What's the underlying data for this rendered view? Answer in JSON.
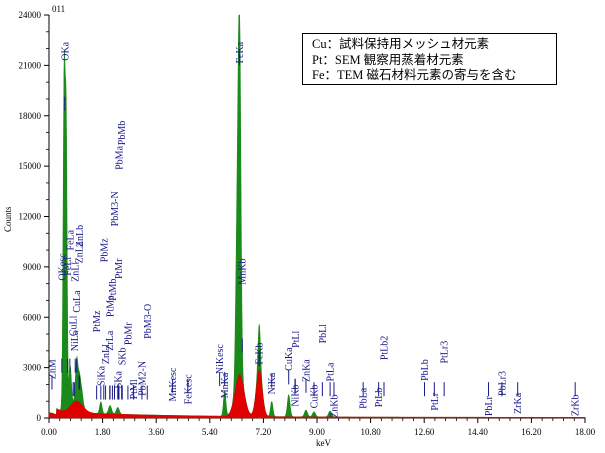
{
  "chart_data": {
    "type": "area",
    "xlabel": "keV",
    "ylabel": "Counts",
    "xlim": [
      0,
      18
    ],
    "ylim": [
      0,
      24000
    ],
    "x_ticks": [
      "0.00",
      "1.80",
      "3.60",
      "5.40",
      "7.20",
      "9.00",
      "10.80",
      "12.60",
      "14.40",
      "16.20",
      "18.00"
    ],
    "y_ticks": [
      "0",
      "3000",
      "6000",
      "9000",
      "12000",
      "15000",
      "18000",
      "21000",
      "24000"
    ],
    "corner_label": "011",
    "series_colors": {
      "peak_fill": "#1a8a1a",
      "background_fill": "#e00000",
      "label_color": "#1a1a8a"
    },
    "green_peaks": [
      {
        "x": 0.51,
        "y": 20200,
        "w": 0.035
      },
      {
        "x": 0.58,
        "y": 15500,
        "w": 0.03
      },
      {
        "x": 0.71,
        "y": 2400,
        "w": 0.04
      },
      {
        "x": 0.93,
        "y": 2500,
        "w": 0.04
      },
      {
        "x": 1.02,
        "y": 1500,
        "w": 0.04
      },
      {
        "x": 1.1,
        "y": 800,
        "w": 0.04
      },
      {
        "x": 1.74,
        "y": 700,
        "w": 0.04
      },
      {
        "x": 2.05,
        "y": 500,
        "w": 0.05
      },
      {
        "x": 2.31,
        "y": 400,
        "w": 0.05
      },
      {
        "x": 5.9,
        "y": 1500,
        "w": 0.04
      },
      {
        "x": 6.4,
        "y": 19800,
        "w": 0.045
      },
      {
        "x": 6.32,
        "y": 9000,
        "w": 0.05
      },
      {
        "x": 7.06,
        "y": 2700,
        "w": 0.04
      },
      {
        "x": 7.48,
        "y": 900,
        "w": 0.04
      },
      {
        "x": 8.05,
        "y": 1300,
        "w": 0.045
      },
      {
        "x": 8.63,
        "y": 400,
        "w": 0.05
      },
      {
        "x": 8.9,
        "y": 300,
        "w": 0.05
      },
      {
        "x": 9.44,
        "y": 350,
        "w": 0.05
      }
    ],
    "red_peaks": [
      {
        "x": 0.05,
        "y": 300,
        "w": 0.2
      },
      {
        "x": 0.93,
        "y": 700,
        "w": 0.2
      },
      {
        "x": 6.4,
        "y": 2500,
        "w": 0.15
      },
      {
        "x": 7.06,
        "y": 2800,
        "w": 0.1
      }
    ],
    "peak_labels": [
      {
        "text": "OKa",
        "x": 0.53,
        "bar_y": 18300,
        "label_y": 22400
      },
      {
        "text": "FeKa",
        "x": 6.4,
        "bar_y": 21000,
        "label_y": 22400
      },
      {
        "text": "ZnM",
        "x": 0.1,
        "bar_y": 1700,
        "label_y": 3500
      },
      {
        "text": "NiLa",
        "x": 0.85,
        "bar_y": 1300,
        "label_y": 5200
      },
      {
        "text": "CuLl",
        "x": 0.81,
        "bar_y": 1300,
        "label_y": 6100
      },
      {
        "text": "CuLa",
        "x": 0.93,
        "bar_y": 2700,
        "label_y": 7600
      },
      {
        "text": "ZnLl",
        "x": 0.88,
        "bar_y": 2700,
        "label_y": 9300
      },
      {
        "text": "ZnLa",
        "x": 1.01,
        "bar_y": 1700,
        "label_y": 10500
      },
      {
        "text": "ZnLb",
        "x": 1.03,
        "bar_y": 1700,
        "label_y": 11500
      },
      {
        "text": "FeLa",
        "x": 0.7,
        "bar_y": 2700,
        "label_y": 11200
      },
      {
        "text": "FeLl",
        "x": 0.62,
        "bar_y": 2700,
        "label_y": 9600
      },
      {
        "text": "OKesc",
        "x": 0.43,
        "bar_y": 2700,
        "label_y": 9800
      },
      {
        "text": "SiKa",
        "x": 1.74,
        "bar_y": 1100,
        "label_y": 3100
      },
      {
        "text": "ZnLl",
        "x": 1.9,
        "bar_y": 1100,
        "label_y": 4400
      },
      {
        "text": "PtMz",
        "x": 1.6,
        "bar_y": 1100,
        "label_y": 6400
      },
      {
        "text": "ZrLa",
        "x": 2.04,
        "bar_y": 1100,
        "label_y": 5200
      },
      {
        "text": "PtMa",
        "x": 2.05,
        "bar_y": 1100,
        "label_y": 7300
      },
      {
        "text": "PtMb",
        "x": 2.13,
        "bar_y": 1100,
        "label_y": 8300
      },
      {
        "text": "PbMz",
        "x": 1.84,
        "bar_y": 1100,
        "label_y": 10700
      },
      {
        "text": "PtMr",
        "x": 2.33,
        "bar_y": 1100,
        "label_y": 9500
      },
      {
        "text": "PbM3-N",
        "x": 2.2,
        "bar_y": 1100,
        "label_y": 13500
      },
      {
        "text": "PbMa",
        "x": 2.35,
        "bar_y": 1100,
        "label_y": 16200
      },
      {
        "text": "PbMb",
        "x": 2.44,
        "bar_y": 1100,
        "label_y": 17700
      },
      {
        "text": "SKa",
        "x": 2.31,
        "bar_y": 1100,
        "label_y": 2800
      },
      {
        "text": "SKb",
        "x": 2.46,
        "bar_y": 1100,
        "label_y": 4200
      },
      {
        "text": "PbMr",
        "x": 2.65,
        "bar_y": 1100,
        "label_y": 5700
      },
      {
        "text": "PtMl",
        "x": 2.84,
        "bar_y": 1100,
        "label_y": 2300
      },
      {
        "text": "PbM2-N",
        "x": 3.12,
        "bar_y": 1100,
        "label_y": 3400
      },
      {
        "text": "PbM3-O",
        "x": 3.3,
        "bar_y": 1100,
        "label_y": 6800
      },
      {
        "text": "MnKesc",
        "x": 4.15,
        "bar_y": 1500,
        "label_y": 3000
      },
      {
        "text": "FeKesc",
        "x": 4.66,
        "bar_y": 1500,
        "label_y": 2600
      },
      {
        "text": "MnKa",
        "x": 5.9,
        "bar_y": 1900,
        "label_y": 2700
      },
      {
        "text": "NiKesc",
        "x": 5.73,
        "bar_y": 1900,
        "label_y": 4400
      },
      {
        "text": "MnKb",
        "x": 6.49,
        "bar_y": 3900,
        "label_y": 9500
      },
      {
        "text": "FeKb",
        "x": 7.06,
        "bar_y": 3100,
        "label_y": 4500
      },
      {
        "text": "NiKa",
        "x": 7.48,
        "bar_y": 1800,
        "label_y": 2700
      },
      {
        "text": "CuKa",
        "x": 8.05,
        "bar_y": 2000,
        "label_y": 4200
      },
      {
        "text": "NiKb",
        "x": 8.26,
        "bar_y": 1500,
        "label_y": 2000
      },
      {
        "text": "PtLl",
        "x": 8.27,
        "bar_y": 1500,
        "label_y": 5200
      },
      {
        "text": "ZnKa",
        "x": 8.63,
        "bar_y": 1500,
        "label_y": 3500
      },
      {
        "text": "CuKb",
        "x": 8.9,
        "bar_y": 1300,
        "label_y": 2000
      },
      {
        "text": "PbLl",
        "x": 9.18,
        "bar_y": 1300,
        "label_y": 5600
      },
      {
        "text": "ZnKb",
        "x": 9.57,
        "bar_y": 1300,
        "label_y": 1400
      },
      {
        "text": "PtLa",
        "x": 9.44,
        "bar_y": 1300,
        "label_y": 3300
      },
      {
        "text": "PbLa",
        "x": 10.55,
        "bar_y": 1300,
        "label_y": 1800
      },
      {
        "text": "PtLb",
        "x": 11.07,
        "bar_y": 1300,
        "label_y": 1800
      },
      {
        "text": "PtLb2",
        "x": 11.25,
        "bar_y": 1300,
        "label_y": 4900
      },
      {
        "text": "PbLb",
        "x": 12.61,
        "bar_y": 1300,
        "label_y": 3500
      },
      {
        "text": "PtLr",
        "x": 12.94,
        "bar_y": 1300,
        "label_y": 1500
      },
      {
        "text": "PtLr3",
        "x": 13.27,
        "bar_y": 1300,
        "label_y": 4600
      },
      {
        "text": "PbLr",
        "x": 14.76,
        "bar_y": 1300,
        "label_y": 1300
      },
      {
        "text": "PbLr3",
        "x": 15.21,
        "bar_y": 1300,
        "label_y": 2800
      },
      {
        "text": "ZrKa",
        "x": 15.74,
        "bar_y": 1300,
        "label_y": 1500
      },
      {
        "text": "ZrKb",
        "x": 17.67,
        "bar_y": 1300,
        "label_y": 1400
      }
    ]
  },
  "legend": {
    "lines": [
      "Cu：試料保持用メッシュ材元素",
      "Pt：SEM 観察用蒸着材元素",
      "Fe：TEM 磁石材料元素の寄与を含む"
    ]
  }
}
